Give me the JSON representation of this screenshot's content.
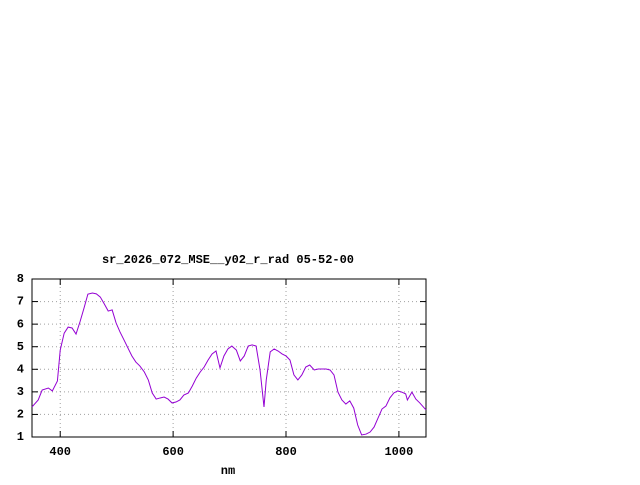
{
  "chart_data": {
    "type": "line",
    "title": "sr_2026_072_MSE__y02_r_rad 05-52-00",
    "x_label": "nm",
    "xlim": [
      350,
      1048
    ],
    "ylim": [
      1,
      8
    ],
    "xticks": [
      400,
      600,
      800,
      1000
    ],
    "yticks": [
      1,
      2,
      3,
      4,
      5,
      6,
      7,
      8
    ],
    "grid": true,
    "series": [
      {
        "name": null,
        "color": "#9400d3",
        "x": [
          350,
          361,
          368,
          379,
          386,
          395,
          400,
          407,
          414,
          421,
          428,
          435,
          442,
          449,
          457,
          464,
          471,
          478,
          485,
          492,
          499,
          506,
          513,
          520,
          527,
          534,
          541,
          549,
          556,
          563,
          570,
          577,
          584,
          591,
          598,
          605,
          612,
          619,
          627,
          634,
          641,
          648,
          655,
          662,
          669,
          676,
          683,
          690,
          697,
          704,
          712,
          719,
          726,
          733,
          740,
          747,
          754,
          761,
          765,
          772,
          779,
          786,
          793,
          800,
          807,
          814,
          821,
          828,
          835,
          842,
          850,
          857,
          864,
          871,
          878,
          885,
          892,
          899,
          906,
          913,
          920,
          927,
          934,
          942,
          949,
          956,
          963,
          970,
          977,
          984,
          991,
          998,
          1005,
          1012,
          1015,
          1023,
          1030,
          1037,
          1048
        ],
        "values": [
          2.33,
          2.64,
          3.08,
          3.17,
          3.04,
          3.48,
          4.85,
          5.6,
          5.87,
          5.83,
          5.56,
          6.1,
          6.7,
          7.33,
          7.38,
          7.34,
          7.2,
          6.9,
          6.58,
          6.63,
          6.05,
          5.65,
          5.3,
          4.94,
          4.59,
          4.32,
          4.15,
          3.88,
          3.53,
          2.95,
          2.68,
          2.73,
          2.77,
          2.68,
          2.51,
          2.55,
          2.64,
          2.86,
          2.95,
          3.26,
          3.61,
          3.88,
          4.1,
          4.41,
          4.68,
          4.81,
          4.06,
          4.59,
          4.9,
          5.03,
          4.85,
          4.37,
          4.59,
          5.03,
          5.08,
          5.03,
          3.97,
          2.33,
          3.53,
          4.77,
          4.9,
          4.81,
          4.68,
          4.59,
          4.41,
          3.75,
          3.53,
          3.75,
          4.1,
          4.19,
          3.97,
          4.01,
          4.01,
          4.01,
          3.97,
          3.75,
          2.99,
          2.64,
          2.46,
          2.6,
          2.28,
          1.53,
          1.09,
          1.13,
          1.22,
          1.44,
          1.84,
          2.24,
          2.37,
          2.73,
          2.95,
          3.04,
          2.99,
          2.91,
          2.64,
          2.99,
          2.68,
          2.51,
          2.2
        ]
      }
    ]
  }
}
